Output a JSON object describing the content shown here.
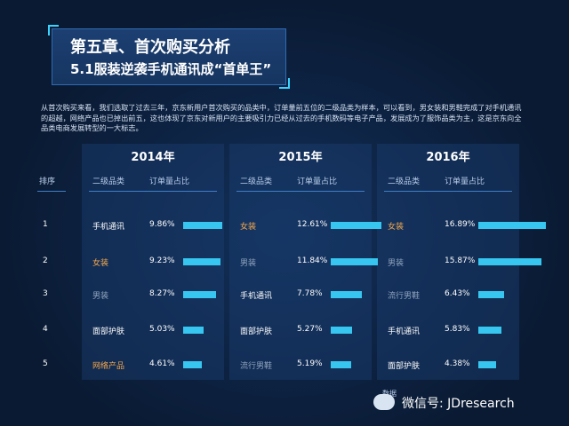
{
  "header": {
    "title": "第五章、首次购买分析",
    "subtitle": "5.1服装逆袭手机通讯成“首单王”"
  },
  "intro": "从首次购买来看，我们选取了过去三年，京东新用户首次购买的品类中，订单量前五位的二级品类为样本，可以看到，男女装和男鞋完成了对手机通讯的超越，网络产品也已掉出前五，这也体现了京东对新用户的主要吸引力已经从过去的手机数码等电子产品，发展成为了服饰品类为主，这是京东向全品类电商发展转型的一大标志。",
  "table": {
    "rank_header": "排序",
    "category_header": "二级品类",
    "ratio_header": "订单量占比",
    "ranks": [
      "1",
      "2",
      "3",
      "4",
      "5"
    ],
    "years": [
      {
        "year": "2014年",
        "rows": [
          {
            "category": "手机通讯",
            "ratio": "9.86%",
            "value": 9.86,
            "color": "white"
          },
          {
            "category": "女装",
            "ratio": "9.23%",
            "value": 9.23,
            "color": "orange"
          },
          {
            "category": "男装",
            "ratio": "8.27%",
            "value": 8.27,
            "color": "grey"
          },
          {
            "category": "面部护肤",
            "ratio": "5.03%",
            "value": 5.03,
            "color": "white"
          },
          {
            "category": "网络产品",
            "ratio": "4.61%",
            "value": 4.61,
            "color": "orange"
          }
        ]
      },
      {
        "year": "2015年",
        "rows": [
          {
            "category": "女装",
            "ratio": "12.61%",
            "value": 12.61,
            "color": "orange"
          },
          {
            "category": "男装",
            "ratio": "11.84%",
            "value": 11.84,
            "color": "grey"
          },
          {
            "category": "手机通讯",
            "ratio": "7.78%",
            "value": 7.78,
            "color": "white"
          },
          {
            "category": "面部护肤",
            "ratio": "5.27%",
            "value": 5.27,
            "color": "white"
          },
          {
            "category": "流行男鞋",
            "ratio": "5.19%",
            "value": 5.19,
            "color": "grey"
          }
        ]
      },
      {
        "year": "2016年",
        "rows": [
          {
            "category": "女装",
            "ratio": "16.89%",
            "value": 16.89,
            "color": "orange"
          },
          {
            "category": "男装",
            "ratio": "15.87%",
            "value": 15.87,
            "color": "grey"
          },
          {
            "category": "流行男鞋",
            "ratio": "6.43%",
            "value": 6.43,
            "color": "grey"
          },
          {
            "category": "手机通讯",
            "ratio": "5.83%",
            "value": 5.83,
            "color": "white"
          },
          {
            "category": "面部护肤",
            "ratio": "4.38%",
            "value": 4.38,
            "color": "white"
          }
        ]
      }
    ]
  },
  "source": "数据",
  "watermark": "微信号: JDresearch",
  "colors": {
    "bar": "#36c6f0",
    "orange": "#f3a84e",
    "background": "#0a1a33"
  }
}
